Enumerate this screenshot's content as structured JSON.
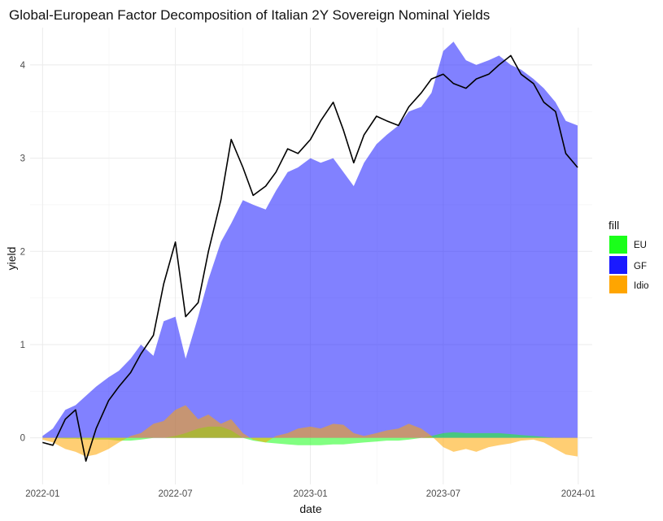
{
  "chart_data": {
    "type": "area",
    "title": "Global-European Factor Decomposition of Italian 2Y Sovereign Nominal Yields",
    "xlabel": "date",
    "ylabel": "yield",
    "x_ticks": [
      "2022-01",
      "2022-07",
      "2023-01",
      "2023-07",
      "2024-01"
    ],
    "y_ticks": [
      "0",
      "1",
      "2",
      "3",
      "4"
    ],
    "xlim": [
      "2021-12-15",
      "2024-01-20"
    ],
    "ylim": [
      -0.5,
      4.4
    ],
    "grid": true,
    "legend": {
      "title": "fill",
      "position": "right",
      "entries": [
        {
          "label": "EU",
          "color": "#1aff1a"
        },
        {
          "label": "GF",
          "color": "#1a1aff"
        },
        {
          "label": "Idio",
          "color": "#ffa500"
        }
      ]
    },
    "series_style": {
      "area_alpha": 0.55,
      "line_color": "#000000"
    },
    "x": [
      "2022-01-01",
      "2022-01-15",
      "2022-02-01",
      "2022-02-15",
      "2022-03-01",
      "2022-03-15",
      "2022-04-01",
      "2022-04-15",
      "2022-05-01",
      "2022-05-15",
      "2022-06-01",
      "2022-06-15",
      "2022-07-01",
      "2022-07-15",
      "2022-08-01",
      "2022-08-15",
      "2022-09-01",
      "2022-09-15",
      "2022-10-01",
      "2022-10-15",
      "2022-11-01",
      "2022-11-15",
      "2022-12-01",
      "2022-12-15",
      "2023-01-01",
      "2023-01-15",
      "2023-02-01",
      "2023-02-15",
      "2023-03-01",
      "2023-03-15",
      "2023-04-01",
      "2023-04-15",
      "2023-05-01",
      "2023-05-15",
      "2023-06-01",
      "2023-06-15",
      "2023-07-01",
      "2023-07-15",
      "2023-08-01",
      "2023-08-15",
      "2023-09-01",
      "2023-09-15",
      "2023-10-01",
      "2023-10-15",
      "2023-11-01",
      "2023-11-15",
      "2023-12-01",
      "2023-12-15",
      "2023-12-31"
    ],
    "series": [
      {
        "name": "GF",
        "values": [
          0.02,
          0.1,
          0.3,
          0.35,
          0.45,
          0.55,
          0.65,
          0.72,
          0.85,
          1.0,
          0.88,
          1.25,
          1.3,
          0.85,
          1.3,
          1.7,
          2.1,
          2.3,
          2.55,
          2.5,
          2.45,
          2.65,
          2.85,
          2.9,
          3.0,
          2.95,
          3.0,
          2.85,
          2.7,
          2.95,
          3.15,
          3.25,
          3.35,
          3.5,
          3.55,
          3.7,
          4.15,
          4.25,
          4.05,
          4.0,
          4.05,
          4.1,
          4.0,
          3.95,
          3.85,
          3.75,
          3.6,
          3.4,
          3.35
        ]
      },
      {
        "name": "EU",
        "values": [
          0.0,
          0.0,
          -0.01,
          -0.01,
          -0.02,
          -0.02,
          -0.02,
          -0.03,
          -0.03,
          -0.02,
          0.0,
          0.0,
          0.02,
          0.05,
          0.1,
          0.12,
          0.12,
          0.08,
          0.0,
          -0.03,
          -0.05,
          -0.06,
          -0.07,
          -0.08,
          -0.08,
          -0.08,
          -0.07,
          -0.07,
          -0.06,
          -0.05,
          -0.04,
          -0.03,
          -0.03,
          -0.02,
          0.0,
          0.02,
          0.05,
          0.06,
          0.05,
          0.05,
          0.05,
          0.05,
          0.04,
          0.03,
          0.02,
          0.01,
          0.0,
          0.0,
          0.0
        ]
      },
      {
        "name": "Idio",
        "values": [
          -0.02,
          -0.05,
          -0.12,
          -0.15,
          -0.2,
          -0.18,
          -0.12,
          -0.05,
          0.02,
          0.05,
          0.15,
          0.18,
          0.3,
          0.35,
          0.2,
          0.25,
          0.15,
          0.2,
          0.05,
          -0.02,
          -0.05,
          0.02,
          0.05,
          0.1,
          0.12,
          0.1,
          0.15,
          0.14,
          0.05,
          0.02,
          0.05,
          0.08,
          0.1,
          0.15,
          0.1,
          0.02,
          -0.1,
          -0.15,
          -0.12,
          -0.15,
          -0.1,
          -0.08,
          -0.06,
          -0.03,
          -0.02,
          -0.05,
          -0.12,
          -0.18,
          -0.2
        ]
      },
      {
        "name": "yield",
        "values": [
          -0.05,
          -0.08,
          0.2,
          0.3,
          -0.25,
          0.1,
          0.4,
          0.55,
          0.7,
          0.9,
          1.1,
          1.65,
          2.1,
          1.3,
          1.45,
          2.0,
          2.55,
          3.2,
          2.9,
          2.6,
          2.7,
          2.85,
          3.1,
          3.05,
          3.2,
          3.4,
          3.6,
          3.3,
          2.95,
          3.25,
          3.45,
          3.4,
          3.35,
          3.55,
          3.7,
          3.85,
          3.9,
          3.8,
          3.75,
          3.85,
          3.9,
          4.0,
          4.1,
          3.9,
          3.8,
          3.6,
          3.5,
          3.05,
          2.9
        ]
      }
    ]
  }
}
